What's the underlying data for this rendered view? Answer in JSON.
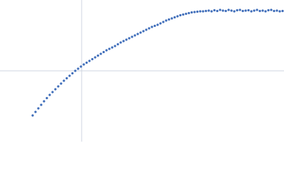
{
  "chart_data": {
    "type": "scatter",
    "color": "#3d6cb9",
    "xlim": [
      -115,
      285
    ],
    "ylim": [
      -100,
      100
    ],
    "x": [
      -69,
      -65,
      -61,
      -57,
      -53,
      -49,
      -45,
      -41,
      -37,
      -33,
      -29,
      -25,
      -21,
      -17,
      -13,
      -9,
      -5,
      -1,
      3,
      7,
      11,
      15,
      19,
      23,
      27,
      31,
      35,
      39,
      43,
      47,
      51,
      55,
      59,
      63,
      67,
      71,
      75,
      79,
      83,
      87,
      91,
      95,
      99,
      103,
      107,
      111,
      115,
      119,
      123,
      127,
      131,
      135,
      139,
      143,
      147,
      151,
      155,
      159,
      163,
      167,
      171,
      175,
      179,
      183,
      187,
      191,
      195,
      199,
      203,
      207,
      211,
      215,
      219,
      223,
      227,
      231,
      235,
      239,
      243,
      247,
      251,
      255,
      259,
      263,
      267,
      271,
      275,
      279,
      283
    ],
    "y": [
      -63,
      -58,
      -53,
      -48,
      -43,
      -38.5,
      -34,
      -30,
      -26,
      -22,
      -18,
      -14,
      -10.5,
      -7,
      -3.5,
      0,
      3,
      6,
      9,
      11.5,
      14,
      16.5,
      19,
      21.5,
      24,
      26.5,
      29,
      31,
      33,
      35,
      37.5,
      40,
      42,
      44,
      46,
      48,
      50,
      52,
      54,
      56,
      58,
      60,
      62,
      63.5,
      65,
      67,
      69,
      71,
      72.5,
      74,
      75.5,
      77,
      78.5,
      79.5,
      80.5,
      81.5,
      82.5,
      83,
      83.5,
      84,
      84,
      84.5,
      85,
      84,
      85.5,
      84.5,
      86,
      85,
      84.5,
      86,
      85,
      84,
      85.5,
      86,
      84.5,
      85,
      85.5,
      84,
      85,
      86,
      84.5,
      85,
      84,
      85.5,
      86,
      84.5,
      85,
      84,
      84.5
    ]
  }
}
